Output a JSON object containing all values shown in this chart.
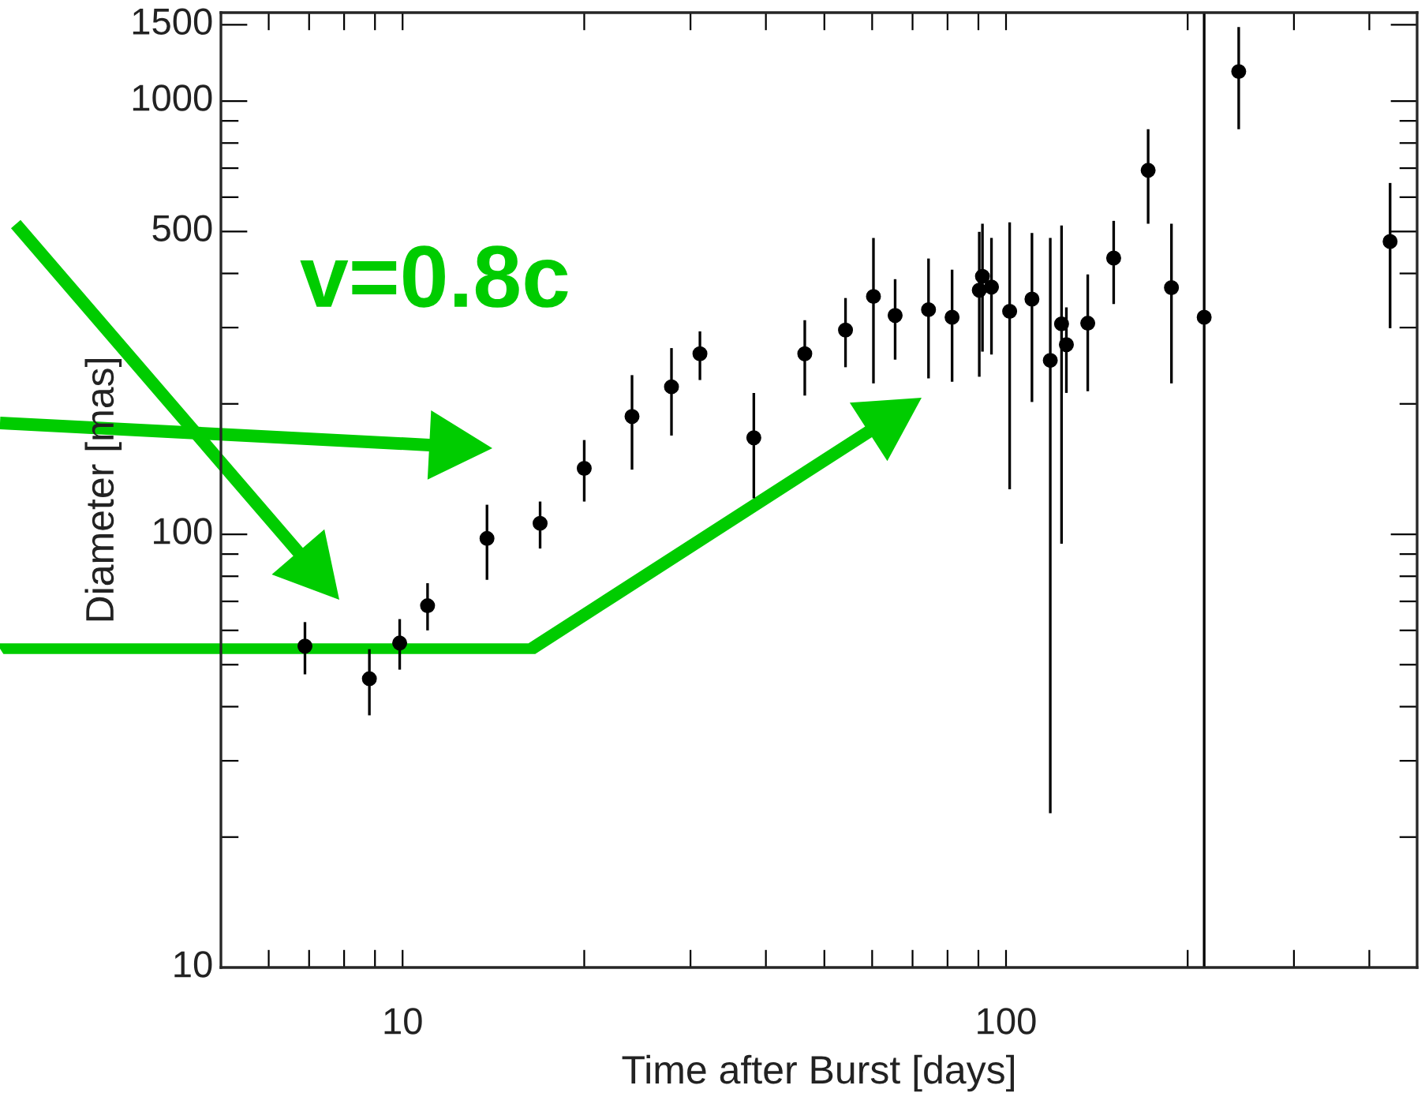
{
  "chart_data": {
    "type": "scatter",
    "xlabel": "Time after Burst [days]",
    "ylabel": "Diameter [mas]",
    "annotations": [
      "v=0.8c"
    ],
    "log": "xy",
    "xlim": [
      5,
      480
    ],
    "ylim": [
      10,
      1600
    ],
    "xticks": [
      {
        "value": 6,
        "label": null
      },
      {
        "value": 7,
        "label": null
      },
      {
        "value": 8,
        "label": null
      },
      {
        "value": 9,
        "label": null
      },
      10,
      {
        "value": 20,
        "label": null
      },
      {
        "value": 30,
        "label": null
      },
      {
        "value": 40,
        "label": null
      },
      {
        "value": 50,
        "label": null
      },
      {
        "value": 60,
        "label": null
      },
      {
        "value": 70,
        "label": null
      },
      {
        "value": 80,
        "label": null
      },
      {
        "value": 90,
        "label": null
      },
      100,
      {
        "value": 200,
        "label": null
      },
      {
        "value": 300,
        "label": null
      },
      {
        "value": 400,
        "label": null
      }
    ],
    "yticks": [
      10,
      {
        "value": 20,
        "label": null
      },
      {
        "value": 30,
        "label": null
      },
      {
        "value": 40,
        "label": null
      },
      {
        "value": 50,
        "label": null
      },
      {
        "value": 60,
        "label": null
      },
      {
        "value": 70,
        "label": null
      },
      {
        "value": 80,
        "label": null
      },
      {
        "value": 90,
        "label": null
      },
      100,
      {
        "value": 200,
        "label": null
      },
      {
        "value": 300,
        "label": null
      },
      {
        "value": 400,
        "label": null
      },
      500,
      {
        "value": 600,
        "label": null
      },
      {
        "value": 700,
        "label": null
      },
      {
        "value": 800,
        "label": null
      },
      {
        "value": 900,
        "label": null
      },
      1000,
      1500
    ],
    "grid": false,
    "legend": false,
    "marker": "circle",
    "ref_lines": [
      {
        "axis": "x",
        "value": 213,
        "color": "#000000"
      }
    ],
    "series": [
      {
        "color": "#000000",
        "x": [
          6.89,
          8.81,
          9.89,
          11.0,
          13.8,
          16.9,
          20.0,
          24.0,
          27.9,
          31.1,
          38.2,
          46.4,
          54.2,
          60.3,
          65.5,
          74.4,
          81.4,
          90.3,
          91.4,
          94.6,
          101.4,
          110.4,
          118.4,
          123.6,
          125.9,
          136.6,
          150.8,
          172,
          188,
          213,
          243,
          433
        ],
        "values": [
          55.2,
          46.4,
          56.1,
          68.4,
          97.8,
          106,
          142,
          187,
          219,
          261,
          167,
          261,
          296,
          354,
          320,
          330,
          317,
          366,
          394,
          372,
          327,
          349,
          252,
          306,
          274,
          307,
          434,
          692,
          371,
          317,
          1170,
          474
        ],
        "errors": [
          [
            47.5,
            62.7
          ],
          [
            38.2,
            54.3
          ],
          [
            48.7,
            63.7
          ],
          [
            60.0,
            77.1
          ],
          [
            78.5,
            117
          ],
          [
            92.7,
            119
          ],
          [
            119,
            165
          ],
          [
            141,
            233
          ],
          [
            169,
            269
          ],
          [
            227,
            294
          ],
          [
            121,
            212
          ],
          [
            209,
            312
          ],
          [
            243,
            351
          ],
          [
            223,
            483
          ],
          [
            253,
            388
          ],
          [
            229,
            433
          ],
          [
            225,
            408
          ],
          [
            231,
            499
          ],
          [
            264,
            521
          ],
          [
            260,
            483
          ],
          [
            127,
            525
          ],
          [
            202,
            496
          ],
          [
            22.7,
            483
          ],
          [
            95.1,
            516
          ],
          [
            212,
            334
          ],
          [
            214,
            398
          ],
          [
            340,
            529
          ],
          [
            521,
            861
          ],
          [
            223,
            521
          ],
          null,
          [
            861,
            1482
          ],
          [
            299,
            647
          ]
        ]
      }
    ]
  }
}
